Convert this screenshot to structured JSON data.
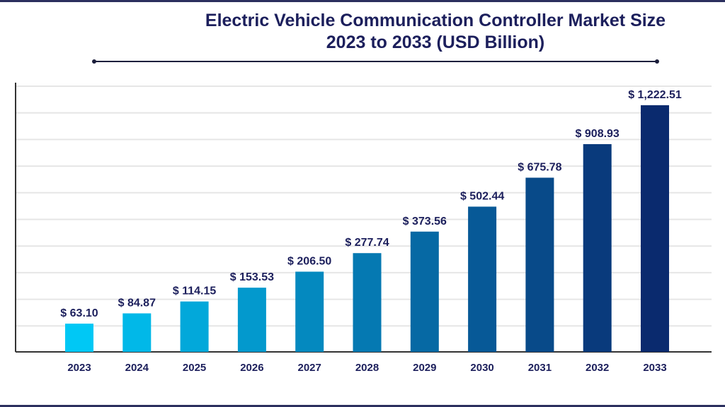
{
  "chart_data": {
    "type": "bar",
    "title": "Electric Vehicle Communication Controller Market Size",
    "subtitle": "2023 to 2033 (USD Billion)",
    "xlabel": "",
    "ylabel": "",
    "categories": [
      "2023",
      "2024",
      "2025",
      "2026",
      "2027",
      "2028",
      "2029",
      "2030",
      "2031",
      "2032",
      "2033"
    ],
    "values": [
      63.1,
      84.87,
      114.15,
      153.53,
      206.5,
      277.74,
      373.56,
      502.44,
      675.78,
      908.93,
      1222.51
    ],
    "data_labels": [
      "$ 63.10",
      "$ 84.87",
      "$ 114.15",
      "$ 153.53",
      "$ 206.50",
      "$ 277.74",
      "$ 373.56",
      "$ 502.44",
      "$ 675.78",
      "$ 908.93",
      "$ 1,222.51"
    ],
    "grid": true,
    "y_axis_labels": false,
    "legend": "none",
    "colors": {
      "start": "#00c8f5",
      "end": "#0a2a6e",
      "text": "#1c1f5c",
      "grid": "#e6e6e6",
      "axis": "#333333"
    }
  }
}
